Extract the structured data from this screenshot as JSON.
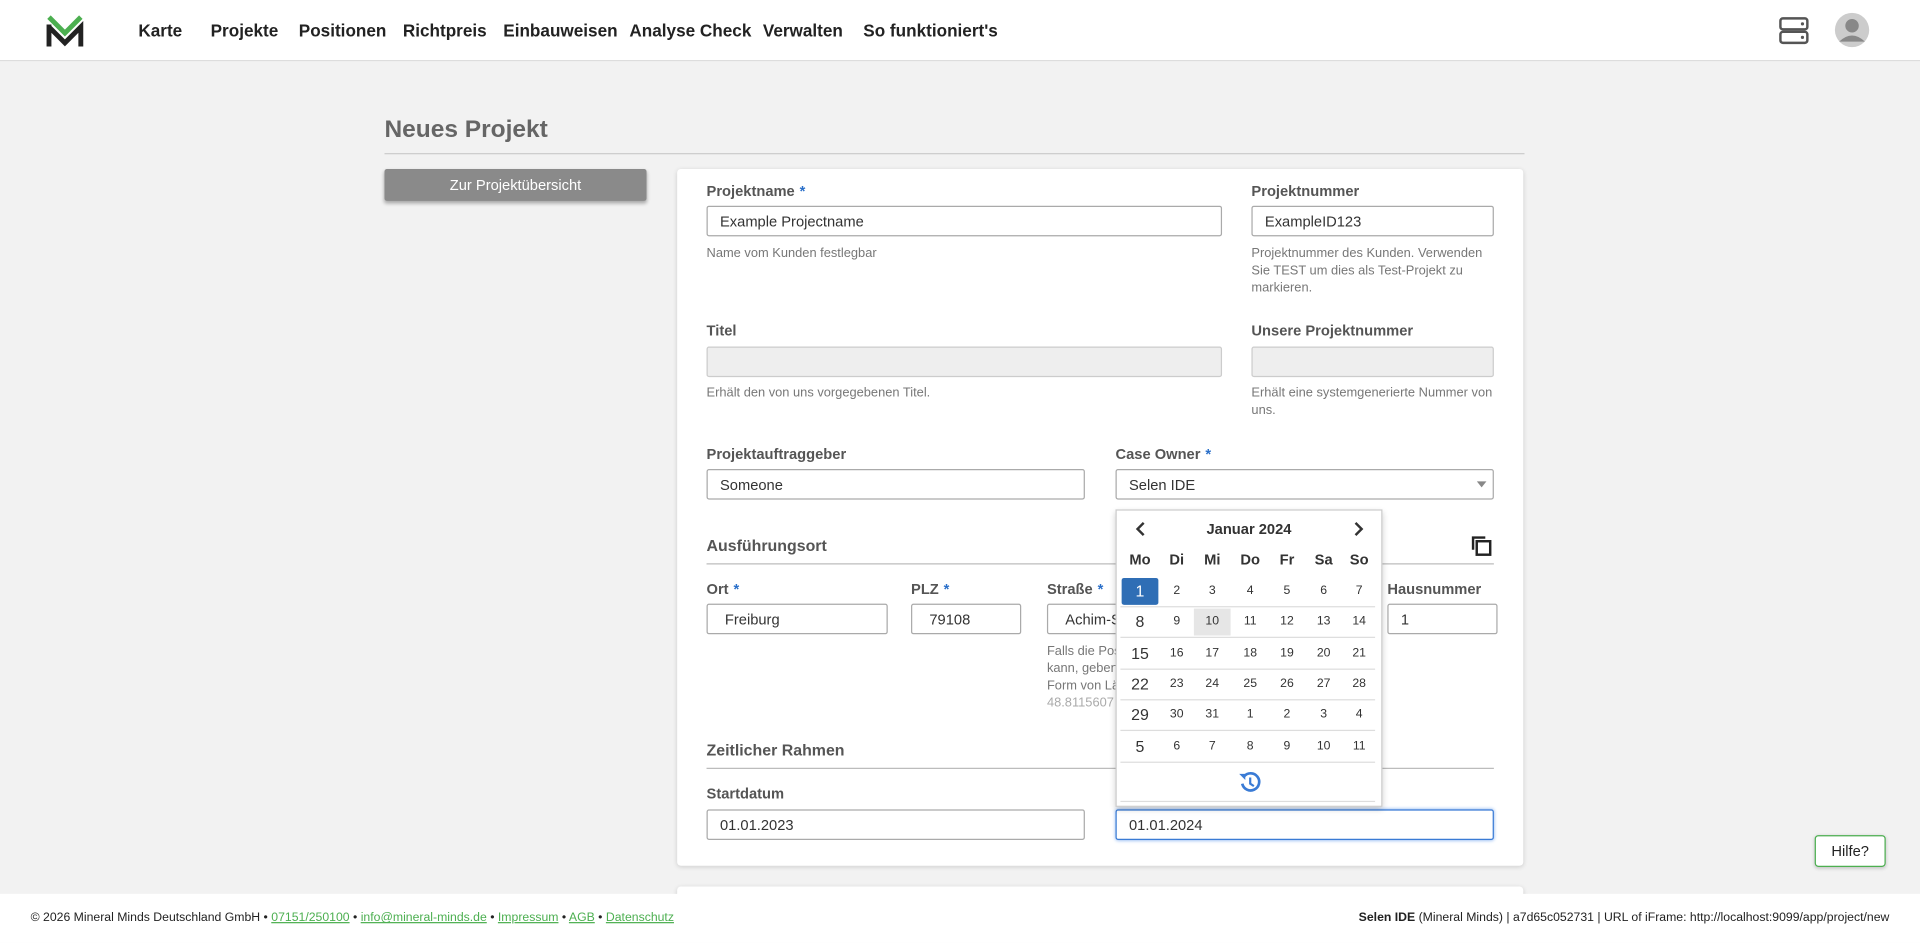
{
  "nav": {
    "items": [
      "Karte",
      "Projekte",
      "Positionen",
      "Richtpreis",
      "Einbauweisen",
      "Analyse Check",
      "Verwalten",
      "So funktioniert's"
    ]
  },
  "header": {
    "title": "Neues Projekt"
  },
  "back_button": "Zur Projektübersicht",
  "required_mark": "*",
  "form": {
    "projektname": {
      "label": "Projektname",
      "value": "Example Projectname",
      "hint": "Name vom Kunden festlegbar"
    },
    "projektnummer": {
      "label": "Projektnummer",
      "value": "ExampleID123",
      "hint": "Projektnummer des Kunden. Verwenden Sie TEST um dies als Test-Projekt zu markieren."
    },
    "titel": {
      "label": "Titel",
      "hint": "Erhält den von uns vorgegebenen Titel."
    },
    "unsere_projektnummer": {
      "label": "Unsere Projektnummer",
      "hint": "Erhält eine systemgenerierte Nummer von uns."
    },
    "auftraggeber": {
      "label": "Projektauftraggeber",
      "value": "Someone"
    },
    "case_owner": {
      "label": "Case Owner",
      "value": "Selen IDE"
    },
    "section_ort": "Ausführungsort",
    "ort": {
      "label": "Ort",
      "value": "Freiburg"
    },
    "plz": {
      "label": "PLZ",
      "value": "79108"
    },
    "strasse": {
      "label": "Straße",
      "value": "Achim-S",
      "hint_lines": [
        "Falls die Pos",
        "kann, geben",
        "Form von Lä",
        "48.8115607"
      ]
    },
    "hausnummer": {
      "label": "Hausnummer",
      "value": "1"
    },
    "section_zeit": "Zeitlicher Rahmen",
    "startdatum": {
      "label": "Startdatum",
      "value": "01.01.2023"
    },
    "enddatum": {
      "value": "01.01.2024"
    }
  },
  "calendar": {
    "month": "Januar 2024",
    "weekdays": [
      "Mo",
      "Di",
      "Mi",
      "Do",
      "Fr",
      "Sa",
      "So"
    ],
    "weeks": [
      [
        "1",
        "2",
        "3",
        "4",
        "5",
        "6",
        "7"
      ],
      [
        "8",
        "9",
        "10",
        "11",
        "12",
        "13",
        "14"
      ],
      [
        "15",
        "16",
        "17",
        "18",
        "19",
        "20",
        "21"
      ],
      [
        "22",
        "23",
        "24",
        "25",
        "26",
        "27",
        "28"
      ],
      [
        "29",
        "30",
        "31",
        "1",
        "2",
        "3",
        "4"
      ],
      [
        "5",
        "6",
        "7",
        "8",
        "9",
        "10",
        "11"
      ]
    ],
    "selected": [
      0,
      0
    ],
    "hovered": [
      1,
      2
    ]
  },
  "help_button": "Hilfe?",
  "footer": {
    "copyright": "© 2026 Mineral Minds Deutschland GmbH",
    "separator": "•",
    "links": [
      "07151/250100",
      "info@mineral-minds.de",
      "Impressum",
      "AGB",
      "Datenschutz"
    ],
    "user": "Selen IDE",
    "info": "(Mineral Minds) | a7d65c052731 | URL of iFrame: http://localhost:9099/app/project/new"
  }
}
